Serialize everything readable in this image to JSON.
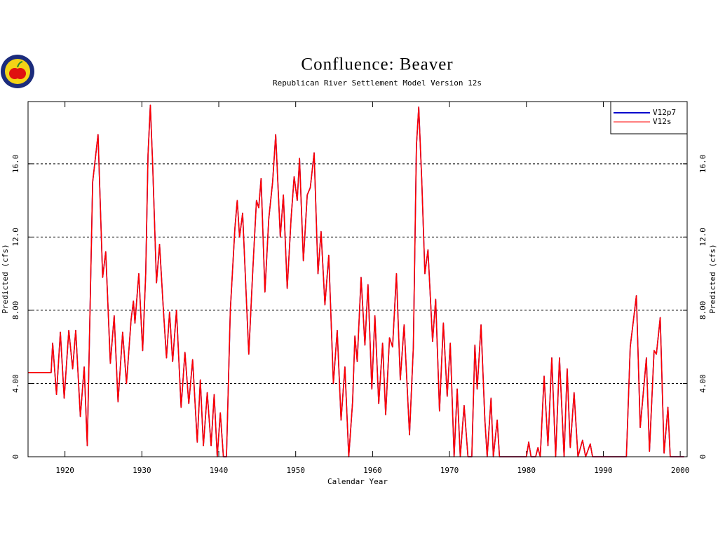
{
  "chart_data": {
    "type": "line",
    "title": "Confluence: Beaver",
    "subtitle": "Republican River Settlement Model Version 12s",
    "xlabel": "Calendar Year",
    "ylabel": "Predicted (cfs)",
    "legend": "upper right",
    "grid": true,
    "xlim": [
      1915.2,
      2000.9
    ],
    "ylim": [
      0,
      19.4
    ],
    "xticks": [
      1920,
      1930,
      1940,
      1950,
      1960,
      1970,
      1980,
      1990,
      2000
    ],
    "yticks": [
      0,
      {
        "value": 4,
        "label": "4.00"
      },
      {
        "value": 8,
        "label": "8.00"
      },
      {
        "value": 12,
        "label": "12.0"
      },
      {
        "value": 16,
        "label": "16.0"
      }
    ],
    "x": [
      1915.2,
      1918.2,
      1918.4,
      1918.9,
      1919.4,
      1919.9,
      1920.5,
      1921.0,
      1921.4,
      1922.0,
      1922.5,
      1922.9,
      1923.6,
      1924.3,
      1924.9,
      1925.3,
      1925.9,
      1926.4,
      1926.9,
      1927.5,
      1928.0,
      1928.6,
      1928.9,
      1929.1,
      1929.6,
      1930.1,
      1930.5,
      1930.8,
      1931.1,
      1931.4,
      1931.9,
      1932.3,
      1932.8,
      1933.2,
      1933.6,
      1934.0,
      1934.5,
      1935.1,
      1935.6,
      1936.1,
      1936.6,
      1937.2,
      1937.6,
      1938.0,
      1938.5,
      1939.0,
      1939.4,
      1939.8,
      1940.2,
      1940.6,
      1941.0,
      1941.5,
      1942.1,
      1942.4,
      1942.7,
      1943.1,
      1943.9,
      1944.4,
      1944.9,
      1945.2,
      1945.5,
      1946.0,
      1946.5,
      1947.0,
      1947.4,
      1948.0,
      1948.4,
      1948.9,
      1949.4,
      1949.8,
      1950.2,
      1950.5,
      1951.0,
      1951.5,
      1951.9,
      1952.4,
      1952.9,
      1953.3,
      1953.8,
      1954.3,
      1954.9,
      1955.4,
      1955.9,
      1956.4,
      1956.9,
      1957.4,
      1957.7,
      1958.0,
      1958.5,
      1959.0,
      1959.4,
      1959.9,
      1960.3,
      1960.8,
      1961.3,
      1961.7,
      1962.2,
      1962.6,
      1963.1,
      1963.6,
      1964.1,
      1964.8,
      1965.3,
      1965.7,
      1966.0,
      1966.4,
      1966.8,
      1967.2,
      1967.8,
      1968.2,
      1968.7,
      1969.2,
      1969.7,
      1970.1,
      1970.6,
      1971.0,
      1971.4,
      1971.9,
      1972.4,
      1972.9,
      1973.3,
      1973.6,
      1974.1,
      1974.6,
      1974.9,
      1975.4,
      1975.7,
      1976.2,
      1976.5,
      1980.0,
      1980.3,
      1980.6,
      1981.2,
      1981.5,
      1981.8,
      1982.3,
      1982.8,
      1983.3,
      1983.8,
      1984.3,
      1984.9,
      1985.3,
      1985.7,
      1986.2,
      1986.7,
      1987.3,
      1987.7,
      1988.3,
      1988.6,
      1993.0,
      1993.5,
      1994.3,
      1994.8,
      1995.6,
      1996.0,
      1996.6,
      1996.9,
      1997.4,
      1997.9,
      1998.4,
      1998.7,
      2000.5
    ],
    "series": [
      {
        "name": "V12p7",
        "color": "#0000cc",
        "values": [
          4.6,
          4.6,
          6.2,
          3.4,
          6.8,
          3.2,
          6.9,
          4.8,
          6.9,
          2.2,
          4.9,
          0.6,
          15,
          17.6,
          9.8,
          11.2,
          5.1,
          7.7,
          3.0,
          6.8,
          4.0,
          7.5,
          8.5,
          7.3,
          10,
          5.8,
          10,
          16.5,
          19.2,
          16,
          9.5,
          11.6,
          8,
          5.4,
          7.9,
          5.2,
          8,
          2.7,
          5.7,
          2.9,
          5.3,
          0.8,
          4.2,
          0.6,
          3.5,
          0.6,
          3.4,
          0,
          2.4,
          0,
          0,
          8,
          12.5,
          14,
          12,
          13.3,
          5.6,
          10,
          14,
          13.6,
          15.2,
          9,
          13,
          15,
          17.6,
          12,
          14.3,
          9.2,
          13,
          15.3,
          14,
          16.3,
          10.7,
          14.3,
          14.7,
          16.6,
          10,
          12.3,
          8.3,
          11,
          4,
          6.9,
          2,
          4.9,
          0,
          3,
          6.6,
          5.2,
          9.8,
          6.1,
          9.4,
          3.7,
          7.7,
          2.9,
          6.2,
          2.3,
          6.5,
          6,
          10,
          4.2,
          7.2,
          1.2,
          6,
          17,
          19.1,
          15,
          10,
          11.3,
          6.3,
          8.6,
          2.5,
          7.3,
          3.3,
          6.2,
          0,
          3.7,
          0,
          2.8,
          0,
          0,
          6.1,
          3.7,
          7.2,
          2,
          0,
          3.2,
          0,
          2,
          0,
          0,
          0.8,
          0,
          0,
          0.5,
          0,
          4.4,
          0.6,
          5.4,
          0,
          5.4,
          0,
          4.8,
          0.5,
          3.5,
          0,
          0.9,
          0,
          0.7,
          0,
          0,
          6,
          8.8,
          1.6,
          5.4,
          0.3,
          5.8,
          5.6,
          7.6,
          0.2,
          2.7,
          0,
          0
        ]
      },
      {
        "name": "V12s",
        "color": "#ff0000",
        "values": [
          4.6,
          4.6,
          6.2,
          3.4,
          6.8,
          3.2,
          6.9,
          4.8,
          6.9,
          2.2,
          4.9,
          0.6,
          15,
          17.6,
          9.8,
          11.2,
          5.1,
          7.7,
          3.0,
          6.8,
          4.0,
          7.5,
          8.5,
          7.3,
          10,
          5.8,
          10,
          16.5,
          19.2,
          16,
          9.5,
          11.6,
          8,
          5.4,
          7.9,
          5.2,
          8,
          2.7,
          5.7,
          2.9,
          5.3,
          0.8,
          4.2,
          0.6,
          3.5,
          0.6,
          3.4,
          0,
          2.4,
          0,
          0,
          8,
          12.5,
          14,
          12,
          13.3,
          5.6,
          10,
          14,
          13.6,
          15.2,
          9,
          13,
          15,
          17.6,
          12,
          14.3,
          9.2,
          13,
          15.3,
          14,
          16.3,
          10.7,
          14.3,
          14.7,
          16.6,
          10,
          12.3,
          8.3,
          11,
          4,
          6.9,
          2,
          4.9,
          0,
          3,
          6.6,
          5.2,
          9.8,
          6.1,
          9.4,
          3.7,
          7.7,
          2.9,
          6.2,
          2.3,
          6.5,
          6,
          10,
          4.2,
          7.2,
          1.2,
          6,
          17,
          19.1,
          15,
          10,
          11.3,
          6.3,
          8.6,
          2.5,
          7.3,
          3.3,
          6.2,
          0,
          3.7,
          0,
          2.8,
          0,
          0,
          6.1,
          3.7,
          7.2,
          2,
          0,
          3.2,
          0,
          2,
          0,
          0,
          0.8,
          0,
          0,
          0.5,
          0,
          4.4,
          0.6,
          5.4,
          0,
          5.4,
          0,
          4.8,
          0.5,
          3.5,
          0,
          0.9,
          0,
          0.7,
          0,
          0,
          6,
          8.8,
          1.6,
          5.4,
          0.3,
          5.8,
          5.6,
          7.6,
          0.2,
          2.7,
          0,
          0
        ]
      }
    ]
  }
}
